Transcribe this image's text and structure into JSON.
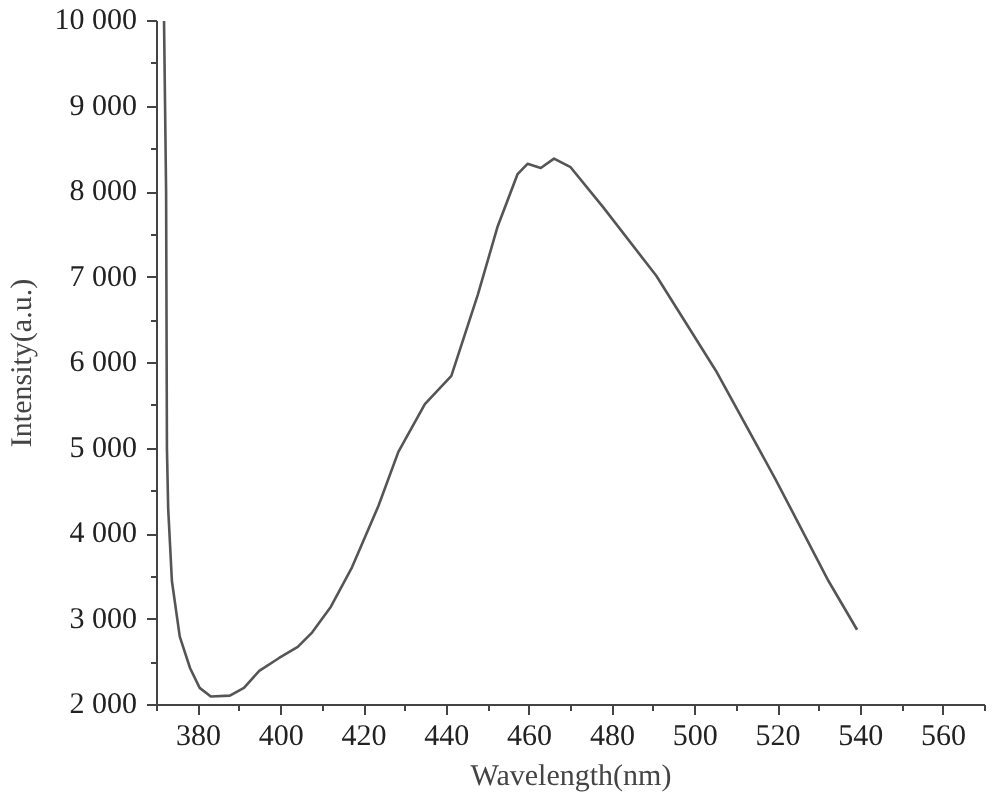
{
  "chart_data": {
    "type": "line",
    "xlabel": "Wavelength(nm)",
    "ylabel": "Intensity(a.u.)",
    "xlim": [
      370,
      570
    ],
    "xticks": [
      380,
      400,
      420,
      440,
      460,
      480,
      500,
      520,
      540,
      560
    ],
    "ylim": [
      2000,
      10000
    ],
    "yticks": [
      {
        "value": 2000,
        "label": "2 000"
      },
      {
        "value": 3000,
        "label": "3 000"
      },
      {
        "value": 4000,
        "label": "4 000"
      },
      {
        "value": 5000,
        "label": "5 000"
      },
      {
        "value": 6000,
        "label": "6 000"
      },
      {
        "value": 7000,
        "label": "7 000"
      },
      {
        "value": 8000,
        "label": "8 000"
      },
      {
        "value": 9000,
        "label": "9 000"
      },
      {
        "value": 10000,
        "label": "10 000"
      }
    ],
    "grid": false,
    "marker": "none",
    "line_style": "solid",
    "x": [
      371.7,
      372.2,
      372.4,
      372.7,
      373.6,
      375.5,
      378,
      380.3,
      383,
      387.6,
      391,
      394.7,
      399.5,
      404,
      407.5,
      412,
      417.1,
      423.5,
      428.3,
      434.7,
      441.1,
      447.5,
      452.3,
      457.1,
      459.5,
      462.7,
      465.9,
      469.9,
      477.8,
      490.6,
      505,
      519.4,
      532.2,
      539.1
    ],
    "series": [
      {
        "color": "#555555",
        "values": [
          10000,
          8000,
          5000,
          4300,
          3450,
          2800,
          2430,
          2200,
          2100,
          2110,
          2200,
          2400,
          2550,
          2680,
          2850,
          3150,
          3610,
          4330,
          4960,
          5520,
          5850,
          6800,
          7600,
          8210,
          8330,
          8280,
          8390,
          8290,
          7820,
          7020,
          5910,
          4640,
          3450,
          2880
        ]
      }
    ]
  }
}
